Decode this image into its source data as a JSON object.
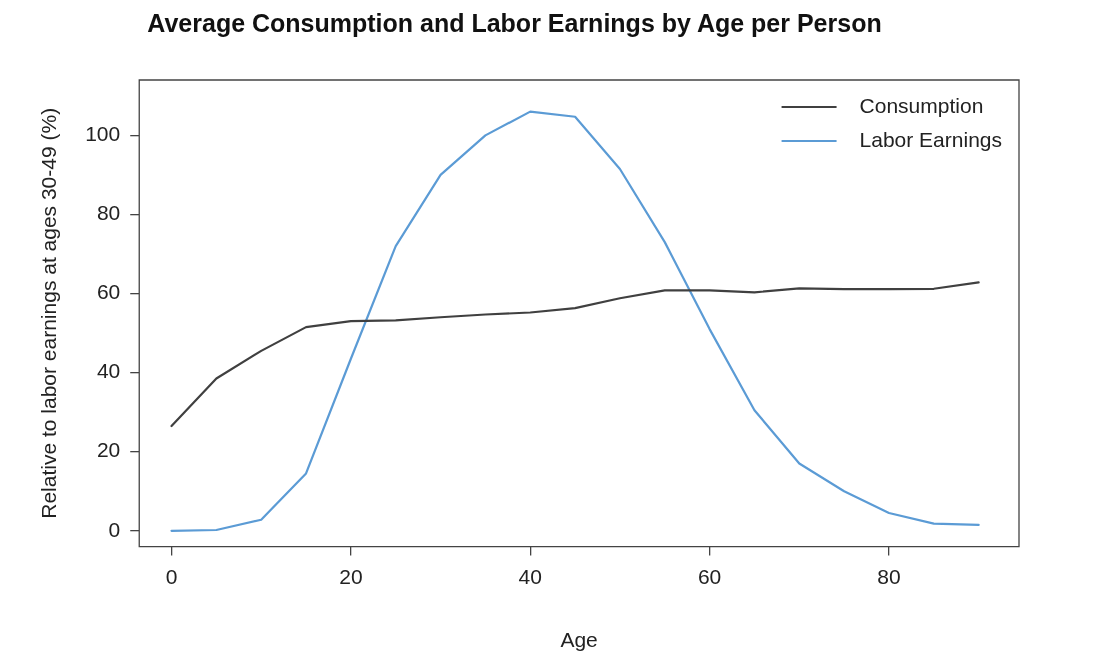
{
  "chart_data": {
    "type": "line",
    "title": "Average Consumption and Labor Earnings by Age per Person",
    "xlabel": "Age",
    "ylabel": "Relative to labor earnings at ages 30-49 (%)",
    "x": [
      0,
      5,
      10,
      15,
      20,
      25,
      30,
      35,
      40,
      45,
      50,
      55,
      60,
      65,
      70,
      75,
      80,
      85,
      90
    ],
    "series": [
      {
        "name": "Consumption",
        "color": "#404040",
        "values": [
          26.5,
          38.5,
          45.5,
          51.5,
          53,
          53.2,
          54,
          54.7,
          55.2,
          56.3,
          58.8,
          60.8,
          60.8,
          60.3,
          61.3,
          61.1,
          61.1,
          61.2,
          62.8
        ]
      },
      {
        "name": "Labor Earnings",
        "color": "#5b9bd5",
        "values": [
          0,
          0.2,
          2.8,
          14.5,
          43.5,
          72,
          90,
          100,
          106,
          104.7,
          91.5,
          73,
          51,
          30.5,
          17,
          10,
          4.5,
          1.8,
          1.5
        ]
      }
    ],
    "xlim": [
      -3.6,
      94.5
    ],
    "ylim": [
      -4,
      114
    ],
    "xticks": [
      0,
      20,
      40,
      60,
      80
    ],
    "yticks": [
      0,
      20,
      40,
      60,
      80,
      100
    ],
    "grid": false,
    "legend": "top right",
    "marker": "none",
    "line_style": "solid"
  }
}
